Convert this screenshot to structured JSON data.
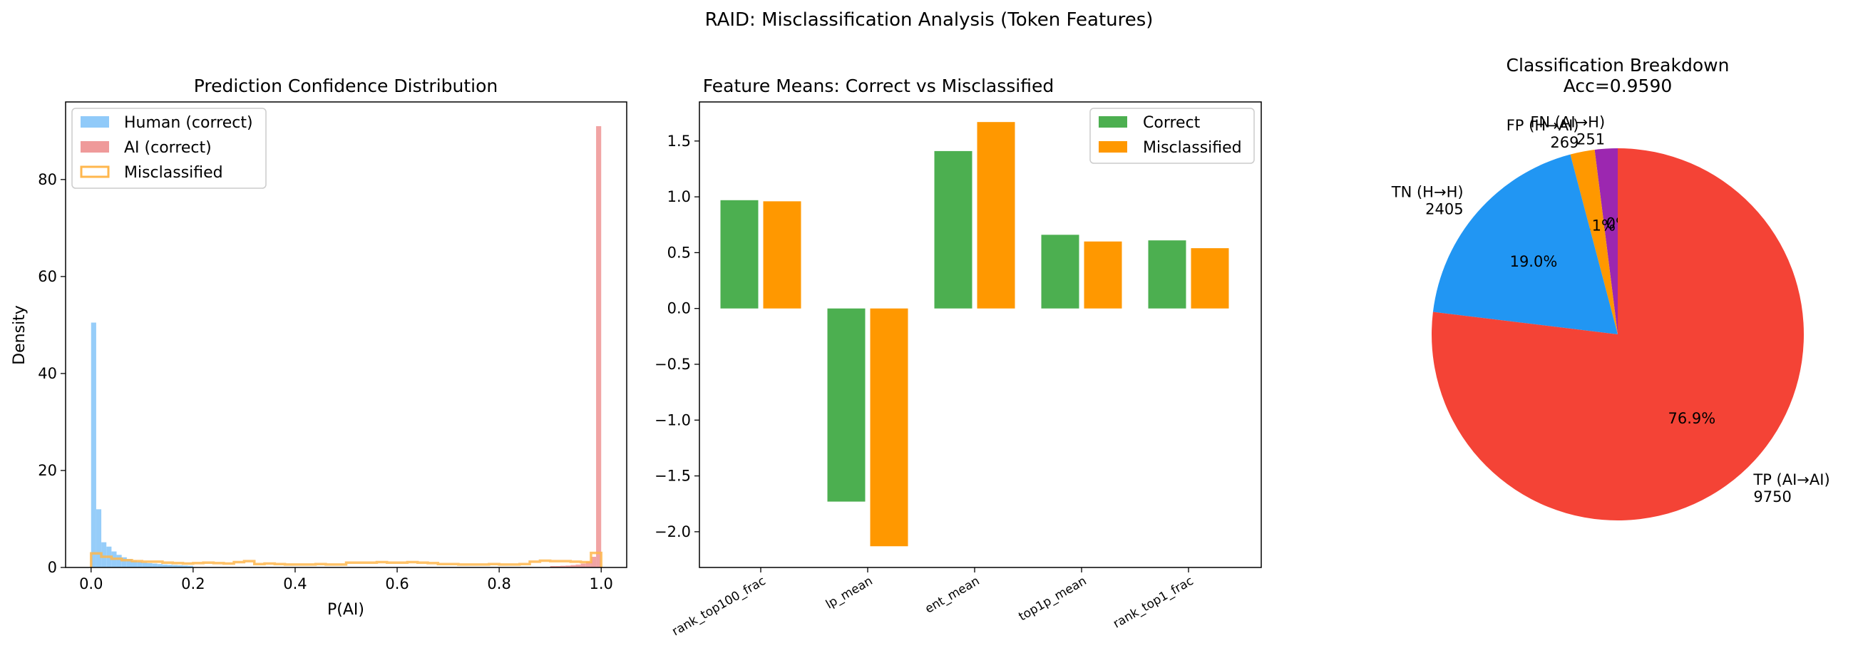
{
  "figure": {
    "title": "RAID: Misclassification Analysis (Token Features)"
  },
  "chart_data": [
    {
      "type": "histogram",
      "title": "Prediction Confidence Distribution",
      "xlabel": "P(AI)",
      "ylabel": "Density",
      "xlim": [
        -0.05,
        1.05
      ],
      "ylim": [
        0,
        96
      ],
      "xticks": [
        0.0,
        0.2,
        0.4,
        0.6,
        0.8,
        1.0
      ],
      "xtick_labels": [
        "0.0",
        "0.2",
        "0.4",
        "0.6",
        "0.8",
        "1.0"
      ],
      "yticks": [
        0,
        20,
        40,
        60,
        80
      ],
      "yticks_labels": [
        "0",
        "20",
        "40",
        "60",
        "80"
      ],
      "legend_position": "top-left",
      "series": [
        {
          "name": "Human (correct)",
          "style": "filled",
          "color": "#90caf9",
          "bin_width": 0.01,
          "bins_start": 0.0,
          "values": [
            50.5,
            12.0,
            5.2,
            4.3,
            3.3,
            2.6,
            2.1,
            1.7,
            1.4,
            1.2,
            1.0,
            0.9,
            0.8,
            0.7,
            0.6,
            0.55,
            0.5,
            0.45,
            0.4,
            0.35
          ]
        },
        {
          "name": "AI (correct)",
          "style": "filled",
          "color": "#ef9a9a",
          "bin_width": 0.01,
          "bins_start": 0.9,
          "values": [
            0.3,
            0.3,
            0.35,
            0.4,
            0.5,
            0.6,
            0.8,
            1.2,
            2.2,
            91.0
          ]
        },
        {
          "name": "Misclassified",
          "style": "step",
          "color": "#ffb74d",
          "bin_width": 0.02,
          "bins_start": 0.0,
          "values": [
            2.9,
            2.2,
            1.8,
            1.5,
            1.3,
            1.2,
            1.2,
            1.0,
            0.9,
            0.8,
            0.9,
            1.0,
            0.9,
            0.8,
            1.1,
            1.3,
            0.7,
            0.8,
            0.7,
            0.6,
            0.6,
            0.6,
            0.7,
            0.6,
            0.6,
            1.0,
            1.0,
            1.0,
            1.1,
            1.0,
            1.0,
            1.1,
            1.0,
            0.9,
            0.7,
            0.7,
            0.6,
            0.6,
            0.6,
            0.7,
            0.6,
            0.6,
            0.7,
            1.2,
            1.4,
            1.3,
            1.3,
            1.2,
            1.1,
            3.0
          ]
        }
      ]
    },
    {
      "type": "bar",
      "title": "Feature Means: Correct vs Misclassified",
      "categories": [
        "rank_top100_frac",
        "lp_mean",
        "ent_mean",
        "top1p_mean",
        "rank_top1_frac"
      ],
      "ylim": [
        -2.32,
        1.85
      ],
      "yticks": [
        -2.0,
        -1.5,
        -1.0,
        -0.5,
        0.0,
        0.5,
        1.0,
        1.5
      ],
      "ytick_labels": [
        "−2.0",
        "−1.5",
        "−1.0",
        "−0.5",
        "0.0",
        "0.5",
        "1.0",
        "1.5"
      ],
      "legend_position": "top-right",
      "series": [
        {
          "name": "Correct",
          "color": "#4caf50",
          "values": [
            0.97,
            -1.73,
            1.41,
            0.66,
            0.61
          ]
        },
        {
          "name": "Misclassified",
          "color": "#ff9800",
          "values": [
            0.96,
            -2.13,
            1.67,
            0.6,
            0.54
          ]
        }
      ]
    },
    {
      "type": "pie",
      "title": "Classification Breakdown",
      "subtitle": "Acc=0.9590",
      "start_angle_deg": 90,
      "slices": [
        {
          "label": "FN (AI→H)",
          "value": 251,
          "count_label": "251",
          "pct_label": "2.0%",
          "color": "#9c27b0"
        },
        {
          "label": "FP (H→AI)",
          "value": 269,
          "count_label": "269",
          "pct_label": "2.1%",
          "color": "#ff9800"
        },
        {
          "label": "TN (H→H)",
          "value": 2405,
          "count_label": "2405",
          "pct_label": "19.0%",
          "color": "#2196f3"
        },
        {
          "label": "TP (AI→AI)",
          "value": 9750,
          "count_label": "9750",
          "pct_label": "76.9%",
          "color": "#f44336"
        }
      ]
    }
  ]
}
